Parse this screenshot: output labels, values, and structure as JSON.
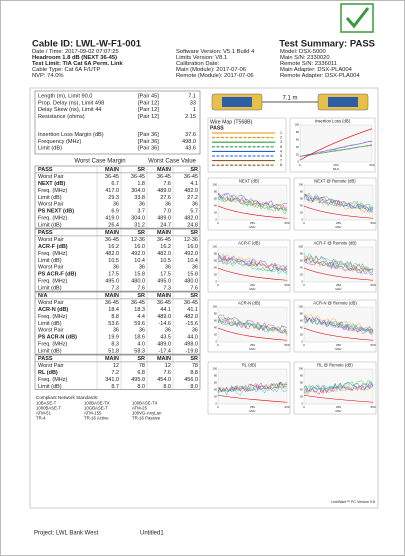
{
  "header": {
    "cable_id": "Cable ID: LWL-W-F1-001",
    "date_time": "Date / Time: 2017-09-02 07:07:25",
    "headroom": "Headroom 1.8 dB (NEXT 36-45)",
    "test_limit": "Test Limit: TIA Cat 6A Perm. Link",
    "cable_type": "Cable Type: Cat 6A F/UTP",
    "nvp": "NVP: 74.0%",
    "software_version": "Software Version: V5.1 Build 4",
    "limits_version": "Limits Version: V8.1",
    "calibration_date": "Calibration Date:",
    "main_module": "Main (Module): 2017-07-06",
    "remote_module": "Remote (Module): 2017-07-06",
    "test_summary": "Test Summary: PASS",
    "model": "Model: DSX-5000",
    "main_sn": "Main S/N: 2330020",
    "remote_sn": "Remote S/N: 2336011",
    "main_adapter": "Main Adapter: DSX-PLA004",
    "remote_adapter": "Remote Adapter: DSX-PLA004"
  },
  "summary": {
    "rows": [
      [
        "Length (m), Limit 90.0",
        "[Pair 45]",
        "7.1"
      ],
      [
        "Prop. Delay (ns), Limit 498",
        "[Pair 12]",
        "33"
      ],
      [
        "Delay Skew (ns), Limit 44",
        "[Pair 12]",
        "1"
      ],
      [
        "Resistance (ohms)",
        "[Pair 12]",
        "2.15"
      ]
    ],
    "rows2": [
      [
        "Insertion Loss Margin (dB)",
        "[Pair 36]",
        "37.6"
      ],
      [
        "Frequency (MHz)",
        "[Pair 36]",
        "498.0"
      ],
      [
        "Limit (dB)",
        "[Pair 36]",
        "43.6"
      ]
    ]
  },
  "worst_case": {
    "headings": [
      "Worst Case Margin",
      "Worst Case Value"
    ],
    "sections": [
      {
        "rows": [
          [
            "PASS",
            "MAIN",
            "SR",
            "MAIN",
            "SR"
          ],
          [
            "Worst Pair",
            "36-45",
            "36-45",
            "36-45",
            "36-45"
          ],
          [
            "NEXT (dB)",
            "6.7",
            "1.8",
            "7.6",
            "4.1"
          ],
          [
            "Freq. (MHz)",
            "417.0",
            "304.0",
            "489.0",
            "482.0"
          ],
          [
            "Limit (dB)",
            "29.3",
            "33.8",
            "27.6",
            "27.2"
          ],
          [
            "Worst Pair",
            "36",
            "36",
            "36",
            "36"
          ],
          [
            "PS NEXT (dB)",
            "6.9",
            "3.7",
            "7.0",
            "5.7"
          ],
          [
            "Freq. (MHz)",
            "419.0",
            "304.0",
            "489.0",
            "482.0"
          ],
          [
            "Limit (dB)",
            "26.4",
            "31.2",
            "24.7",
            "24.8"
          ]
        ]
      },
      {
        "rows": [
          [
            "PASS",
            "MAIN",
            "SR",
            "MAIN",
            "SR"
          ],
          [
            "Worst Pair",
            "36-45",
            "12-36",
            "36-45",
            "12-36"
          ],
          [
            "ACR-F (dB)",
            "16.2",
            "16.0",
            "16.2",
            "16.0"
          ],
          [
            "Freq. (MHz)",
            "482.0",
            "492.0",
            "482.0",
            "492.0"
          ],
          [
            "Limit (dB)",
            "10.5",
            "10.4",
            "10.5",
            "10.4"
          ],
          [
            "Worst Pair",
            "36",
            "36",
            "36",
            "36"
          ],
          [
            "PS ACR-F (dB)",
            "17.5",
            "15.8",
            "17.5",
            "15.8"
          ],
          [
            "Freq. (MHz)",
            "495.0",
            "480.0",
            "495.0",
            "480.0"
          ],
          [
            "Limit (dB)",
            "7.3",
            "7.6",
            "7.3",
            "7.6"
          ]
        ]
      },
      {
        "rows": [
          [
            "N/A",
            "MAIN",
            "SR",
            "MAIN",
            "SR"
          ],
          [
            "Worst Pair",
            "36-45",
            "36-45",
            "36-45",
            "36-45"
          ],
          [
            "ACR-N (dB)",
            "18.4",
            "18.3",
            "44.1",
            "41.1"
          ],
          [
            "Freq. (MHz)",
            "8.8",
            "4.4",
            "489.0",
            "482.0"
          ],
          [
            "Limit (dB)",
            "53.6",
            "59.6",
            "-14.6",
            "-15.6"
          ],
          [
            "Worst Pair",
            "36",
            "36",
            "36",
            "36"
          ],
          [
            "PS ACR-N (dB)",
            "19.9",
            "18.6",
            "43.5",
            "44.0"
          ],
          [
            "Freq. (MHz)",
            "8.3",
            "4.0",
            "489.0",
            "498.0"
          ],
          [
            "Limit (dB)",
            "51.8",
            "58.3",
            "-17.4",
            "-19.8"
          ]
        ]
      },
      {
        "rows": [
          [
            "PASS",
            "MAIN",
            "SR",
            "MAIN",
            "SR"
          ],
          [
            "Worst Pair",
            "12",
            "78",
            "12",
            "78"
          ],
          [
            "RL (dB)",
            "7.2",
            "6.8",
            "7.6",
            "8.8"
          ],
          [
            "Freq. (MHz)",
            "341.0",
            "495.0",
            "454.0",
            "456.0"
          ],
          [
            "Limit (dB)",
            "8.7",
            "8.0",
            "8.0",
            "8.0"
          ]
        ]
      }
    ]
  },
  "standards": {
    "title": "Compliant Network Standards:",
    "items": [
      "10BASE-T",
      "100BASE-TX",
      "100BASE-T4",
      "1000BASE-T",
      "10GBASE-T",
      "ATM-25",
      "ATM-51",
      "ATM-155",
      "100VG-AnyLan",
      "TR-4",
      "TR-16 Active",
      "TR-16 Passive"
    ]
  },
  "length_display": "7.1 m",
  "wire_map": {
    "title": "Wire Map (T568B)",
    "status": "PASS",
    "pins": [
      "1",
      "2",
      "3",
      "6",
      "4",
      "5",
      "7",
      "8"
    ]
  },
  "graphs": {
    "insertion_loss": "Insertion Loss (dB)",
    "pairs": [
      [
        "NEXT (dB)",
        "NEXT @ Remote (dB)"
      ],
      [
        "ACR-F (dB)",
        "ACR-F @ Remote (dB)"
      ],
      [
        "ACR-N (dB)",
        "ACR-N @ Remote (dB)"
      ],
      [
        "RL (dB)",
        "RL @ Remote (dB)"
      ]
    ],
    "x_ticks": [
      "0",
      "250",
      "500"
    ],
    "x_label": "MHz",
    "y_ticks": [
      "100",
      "80",
      "60",
      "40",
      "20",
      "0"
    ]
  },
  "footer": {
    "software": "LinkWare™ PC Version 9.8",
    "project": "Project: LWL Bank West",
    "file": "Untitled1"
  }
}
